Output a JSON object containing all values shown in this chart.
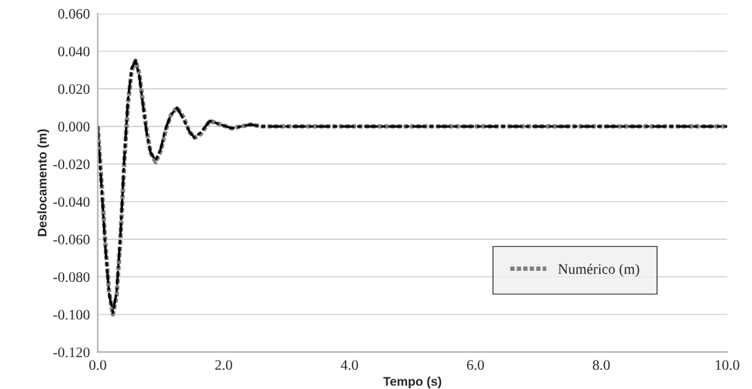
{
  "chart_data": {
    "type": "line",
    "xlabel": "Tempo (s)",
    "ylabel": "Deslocamento (m)",
    "x": [
      0,
      0.06,
      0.12,
      0.18,
      0.24,
      0.3,
      0.36,
      0.42,
      0.48,
      0.54,
      0.6,
      0.66,
      0.72,
      0.78,
      0.84,
      0.92,
      1.0,
      1.08,
      1.16,
      1.26,
      1.36,
      1.46,
      1.54,
      1.64,
      1.78,
      1.95,
      2.13,
      2.28,
      2.43,
      2.6,
      3.0,
      10.0
    ],
    "series": [
      {
        "name": "Numérico (m)",
        "color": "#808080",
        "line_style": "dotted",
        "values": [
          0,
          -0.03,
          -0.062,
          -0.088,
          -0.1,
          -0.09,
          -0.06,
          -0.02,
          0.012,
          0.03,
          0.035,
          0.028,
          0.012,
          -0.003,
          -0.014,
          -0.019,
          -0.013,
          -0.002,
          0.006,
          0.01,
          0.005,
          -0.003,
          -0.006,
          -0.004,
          0.003,
          0.001,
          -0.001,
          0.0,
          0.001,
          0.0,
          0.0,
          0.0
        ]
      },
      {
        "color": "#000000",
        "line_style": "dashed",
        "values": [
          0,
          -0.032,
          -0.064,
          -0.089,
          -0.099,
          -0.088,
          -0.058,
          -0.018,
          0.014,
          0.031,
          0.035,
          0.027,
          0.011,
          -0.004,
          -0.014,
          -0.018,
          -0.012,
          -0.001,
          0.006,
          0.01,
          0.004,
          -0.003,
          -0.006,
          -0.003,
          0.003,
          0.001,
          -0.001,
          0.0,
          0.001,
          0.0,
          0.0,
          0.0
        ]
      }
    ],
    "xlim": [
      0,
      10
    ],
    "xticks": [
      {
        "value": 0,
        "label": "0.0"
      },
      {
        "value": 2,
        "label": "2.0"
      },
      {
        "value": 4,
        "label": "4.0"
      },
      {
        "value": 6,
        "label": "6.0"
      },
      {
        "value": 8,
        "label": "8.0"
      },
      {
        "value": 10,
        "label": "10.0"
      }
    ],
    "ylim": [
      -0.12,
      0.06
    ],
    "yticks": [
      {
        "value": -0.12,
        "label": "-0.120"
      },
      {
        "value": -0.1,
        "label": "-0.100"
      },
      {
        "value": -0.08,
        "label": "-0.080"
      },
      {
        "value": -0.06,
        "label": "-0.060"
      },
      {
        "value": -0.04,
        "label": "-0.040"
      },
      {
        "value": -0.02,
        "label": "-0.020"
      },
      {
        "value": 0,
        "label": "0.000"
      },
      {
        "value": 0.02,
        "label": "0.020"
      },
      {
        "value": 0.04,
        "label": "0.040"
      },
      {
        "value": 0.06,
        "label": "0.060"
      }
    ],
    "grid": "y",
    "legend": "lower right"
  }
}
